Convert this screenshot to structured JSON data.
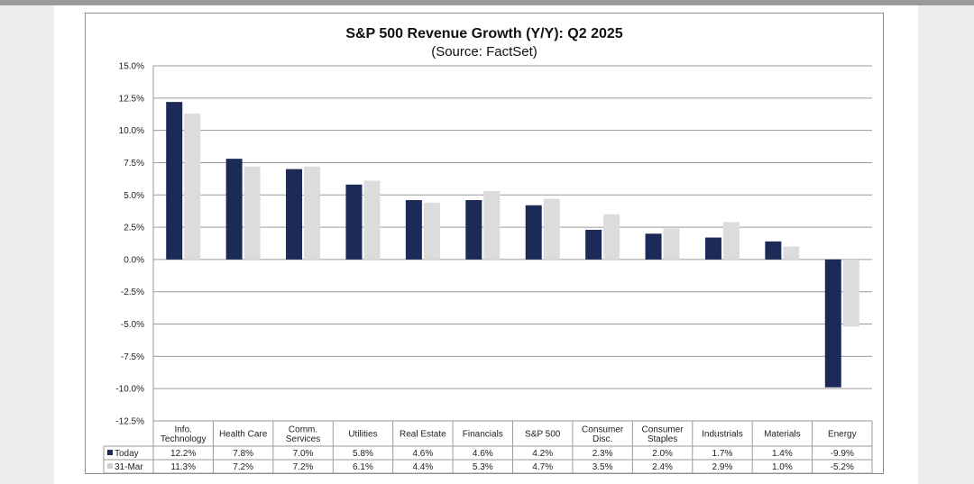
{
  "chart_data": {
    "type": "bar",
    "title": "S&P 500 Revenue Growth (Y/Y):  Q2 2025",
    "subtitle": "(Source: FactSet)",
    "categories": [
      [
        "Info.",
        "Technology"
      ],
      [
        "Health Care"
      ],
      [
        "Comm.",
        "Services"
      ],
      [
        "Utilities"
      ],
      [
        "Real Estate"
      ],
      [
        "Financials"
      ],
      [
        "S&P 500"
      ],
      [
        "Consumer",
        "Disc."
      ],
      [
        "Consumer",
        "Staples"
      ],
      [
        "Industrials"
      ],
      [
        "Materials"
      ],
      [
        "Energy"
      ]
    ],
    "series": [
      {
        "name": "Today",
        "color": "#1b2a57",
        "values": [
          12.2,
          7.8,
          7.0,
          5.8,
          4.6,
          4.6,
          4.2,
          2.3,
          2.0,
          1.7,
          1.4,
          -9.9
        ],
        "labels": [
          "12.2%",
          "7.8%",
          "7.0%",
          "5.8%",
          "4.6%",
          "4.6%",
          "4.2%",
          "2.3%",
          "2.0%",
          "1.7%",
          "1.4%",
          "-9.9%"
        ]
      },
      {
        "name": "31-Mar",
        "color": "#dcdcdc",
        "values": [
          11.3,
          7.2,
          7.2,
          6.1,
          4.4,
          5.3,
          4.7,
          3.5,
          2.4,
          2.9,
          1.0,
          -5.2
        ],
        "labels": [
          "11.3%",
          "7.2%",
          "7.2%",
          "6.1%",
          "4.4%",
          "5.3%",
          "4.7%",
          "3.5%",
          "2.4%",
          "2.9%",
          "1.0%",
          "-5.2%"
        ]
      }
    ],
    "yticks": [
      15.0,
      12.5,
      10.0,
      7.5,
      5.0,
      2.5,
      0.0,
      -2.5,
      -5.0,
      -7.5,
      -10.0,
      -12.5
    ],
    "ytick_labels": [
      "15.0%",
      "12.5%",
      "10.0%",
      "7.5%",
      "5.0%",
      "2.5%",
      "0.0%",
      "-2.5%",
      "-5.0%",
      "-7.5%",
      "-10.0%",
      "-12.5%"
    ],
    "ylim": [
      -12.5,
      15.0
    ],
    "grid": true,
    "legend": "data-table"
  }
}
